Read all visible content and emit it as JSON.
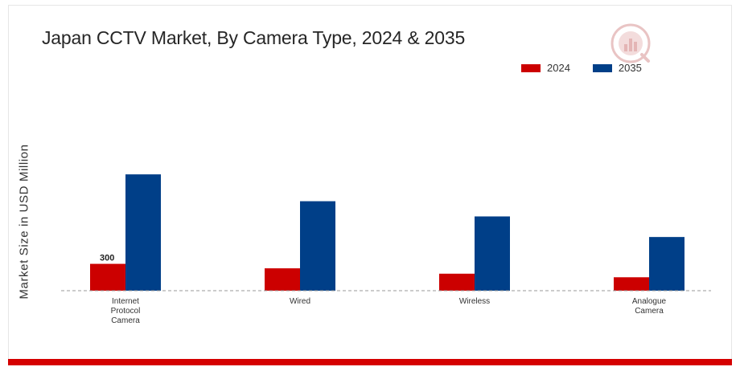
{
  "colors": {
    "series_2024": "#cc0000",
    "series_2035": "#003f88",
    "bottom_bar": "#d50000",
    "baseline": "#999999"
  },
  "chart_data": {
    "type": "bar",
    "title": "Japan CCTV Market, By Camera Type, 2024 & 2035",
    "xlabel": "",
    "ylabel": "Market Size in USD Million",
    "categories": [
      "Internet Protocol Camera",
      "Wired",
      "Wireless",
      "Analogue Camera"
    ],
    "category_lines": [
      [
        "Internet",
        "Protocol",
        "Camera"
      ],
      [
        "Wired"
      ],
      [
        "Wireless"
      ],
      [
        "Analogue",
        "Camera"
      ]
    ],
    "series": [
      {
        "name": "2024",
        "values": [
          300,
          250,
          190,
          150
        ]
      },
      {
        "name": "2035",
        "values": [
          1300,
          1000,
          830,
          600
        ]
      }
    ],
    "data_labels": [
      {
        "series": 0,
        "index": 0,
        "text": "300"
      }
    ],
    "ylim": [
      0,
      1400
    ],
    "grid": false,
    "legend_position": "top-right"
  },
  "logo_icon": "market-research-logo-icon"
}
